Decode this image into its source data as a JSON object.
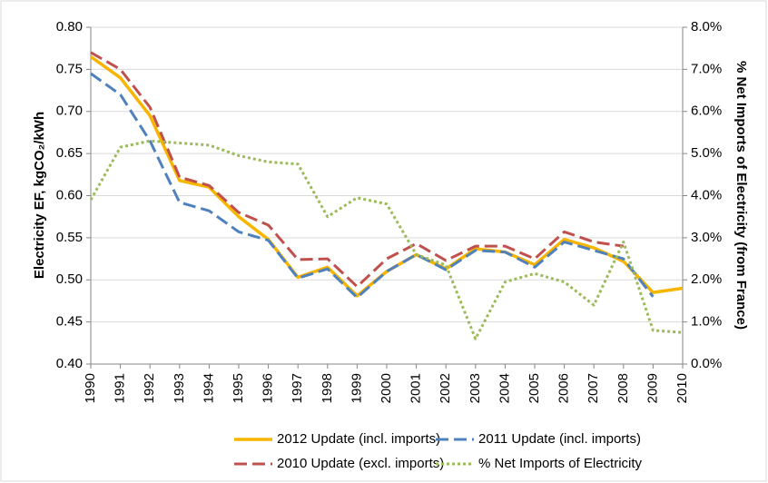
{
  "chart_data": {
    "type": "line",
    "y_label": "Electricity EF, kgCO₂/kWh",
    "y2_label": "% Net Imports of Electricity (from France)",
    "categories": [
      "1990",
      "1991",
      "1992",
      "1993",
      "1994",
      "1995",
      "1996",
      "1997",
      "1998",
      "1999",
      "2000",
      "2001",
      "2002",
      "2003",
      "2004",
      "2005",
      "2006",
      "2007",
      "2008",
      "2009",
      "2010"
    ],
    "ylim": [
      0.4,
      0.8
    ],
    "yticks": [
      {
        "value": 0.4,
        "label": "0.40"
      },
      0.45,
      {
        "value": 0.5,
        "label": "0.50"
      },
      0.55,
      {
        "value": 0.6,
        "label": "0.60"
      },
      0.65,
      {
        "value": 0.7,
        "label": "0.70"
      },
      0.75,
      {
        "value": 0.8,
        "label": "0.80"
      }
    ],
    "y2lim": [
      0,
      8
    ],
    "y2ticks": [
      {
        "value": 0,
        "label": "0.0%"
      },
      {
        "value": 1,
        "label": "1.0%"
      },
      {
        "value": 2,
        "label": "2.0%"
      },
      {
        "value": 3,
        "label": "3.0%"
      },
      {
        "value": 4,
        "label": "4.0%"
      },
      {
        "value": 5,
        "label": "5.0%"
      },
      {
        "value": 6,
        "label": "6.0%"
      },
      {
        "value": 7,
        "label": "7.0%"
      },
      {
        "value": 8,
        "label": "8.0%"
      }
    ],
    "grid": true,
    "legend": "bottom",
    "series": [
      {
        "name": "2012 Update (incl. imports)",
        "color": "#f7b500",
        "style": "solid",
        "values": [
          0.765,
          0.74,
          0.695,
          0.618,
          0.61,
          0.575,
          0.548,
          0.503,
          0.515,
          0.481,
          0.51,
          0.53,
          0.513,
          0.537,
          0.533,
          0.518,
          0.548,
          0.538,
          0.522,
          0.485,
          0.49
        ]
      },
      {
        "name": "2011 Update (incl. imports)",
        "color": "#4f81bd",
        "style": "dashed",
        "values": [
          0.745,
          0.72,
          0.665,
          0.592,
          0.582,
          0.557,
          0.547,
          0.502,
          0.513,
          0.479,
          0.51,
          0.53,
          0.512,
          0.535,
          0.533,
          0.515,
          0.545,
          0.535,
          0.525,
          0.48,
          null
        ]
      },
      {
        "name": "2010 Update (excl. imports)",
        "color": "#c0504d",
        "style": "dashed",
        "values": [
          0.77,
          0.75,
          0.705,
          0.622,
          0.612,
          0.58,
          0.565,
          0.524,
          0.525,
          0.492,
          0.525,
          0.543,
          0.523,
          0.54,
          0.54,
          0.525,
          0.557,
          0.545,
          0.54,
          null,
          null
        ]
      },
      {
        "name": "% Net Imports of Electricity",
        "color": "#9bbb59",
        "style": "dotted",
        "axis": "y2",
        "values": [
          3.9,
          5.15,
          5.3,
          5.25,
          5.2,
          4.95,
          4.8,
          4.75,
          3.5,
          3.95,
          3.8,
          2.6,
          2.35,
          0.6,
          1.95,
          2.15,
          1.95,
          1.4,
          2.9,
          0.8,
          0.75
        ]
      }
    ]
  }
}
